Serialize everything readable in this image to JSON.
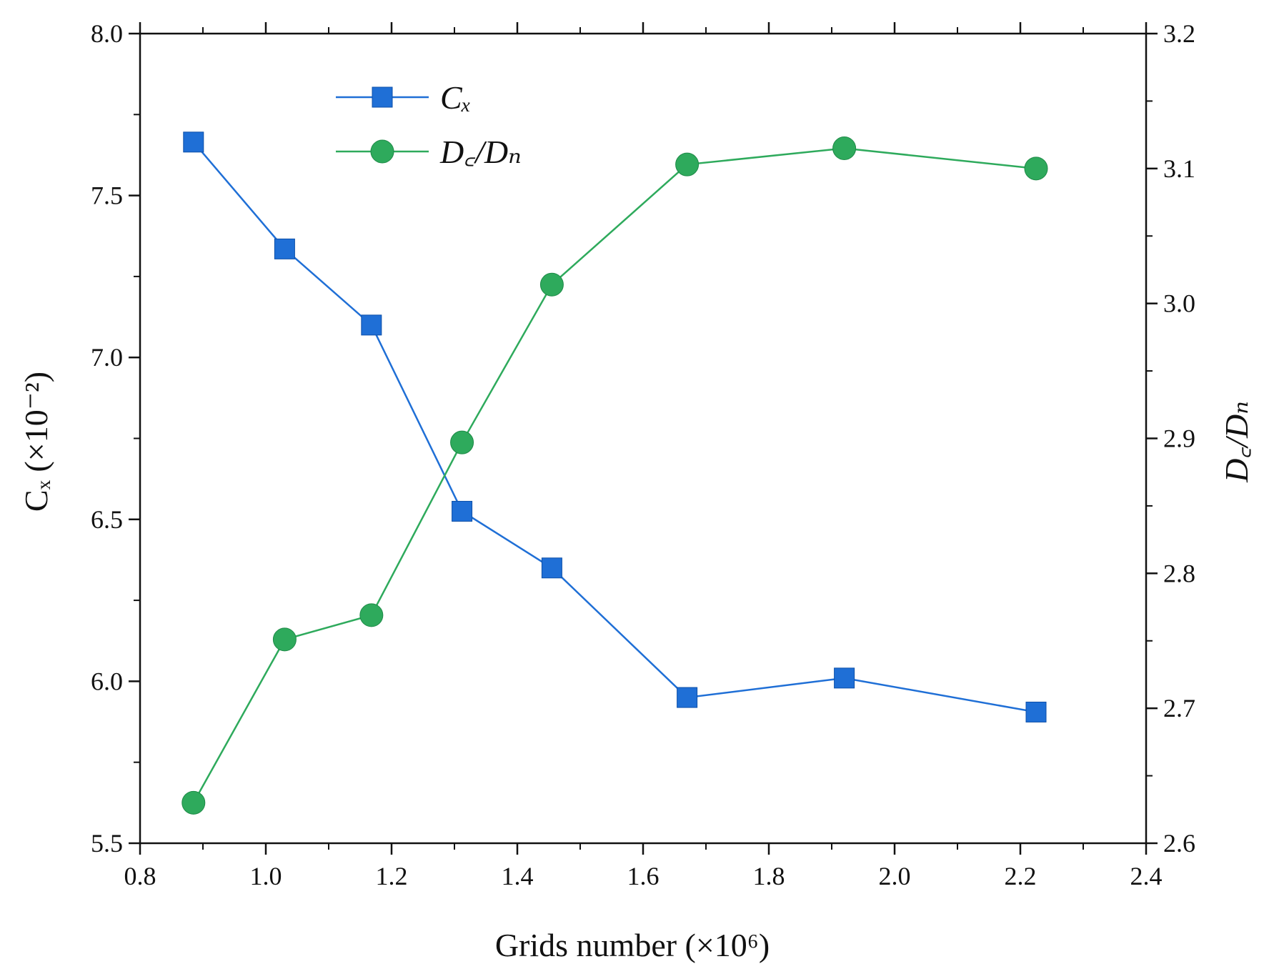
{
  "chart_data": {
    "type": "line",
    "x": [
      0.885,
      1.03,
      1.168,
      1.312,
      1.455,
      1.67,
      1.92,
      2.225
    ],
    "xlim": [
      0.8,
      2.4
    ],
    "ylim_left": [
      5.5,
      8.0
    ],
    "ylim_right": [
      2.6,
      3.2
    ],
    "x_ticks": [
      "0.8",
      "1.0",
      "1.2",
      "1.4",
      "1.6",
      "1.8",
      "2.0",
      "2.2",
      "2.4"
    ],
    "y_left_ticks": [
      "5.5",
      "6.0",
      "6.5",
      "7.0",
      "7.5",
      "8.0"
    ],
    "y_right_ticks": [
      "2.6",
      "2.7",
      "2.8",
      "2.9",
      "3.0",
      "3.1",
      "3.2"
    ],
    "xlabel": "Grids number (×10⁶)",
    "ylabel_left": "Cₓ (×10⁻²)",
    "ylabel_right": "D꜀/Dₙ",
    "grid": false,
    "legend_position": "top-left",
    "series": [
      {
        "name": "Cₓ",
        "axis": "left",
        "marker": "square",
        "color": "#1f6fd6",
        "values": [
          7.665,
          7.335,
          7.1,
          6.525,
          6.35,
          5.95,
          6.01,
          5.905
        ]
      },
      {
        "name": "D꜀/Dₙ",
        "axis": "right",
        "marker": "circle",
        "color": "#2eaa5c",
        "values": [
          2.63,
          2.751,
          2.769,
          2.897,
          3.014,
          3.103,
          3.115,
          3.1
        ]
      }
    ]
  }
}
